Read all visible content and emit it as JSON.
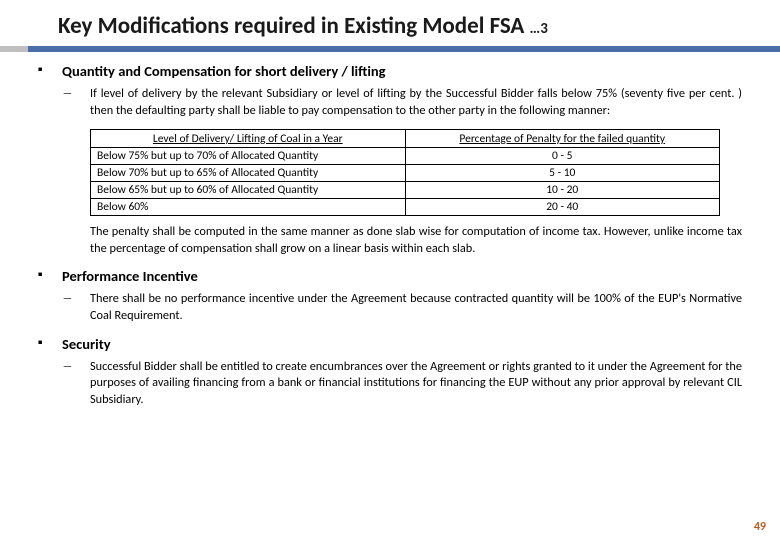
{
  "title_main": "Key Modifications required in Existing Model FSA ",
  "title_suffix": "…3",
  "accent_left_color": "#bfbfbf",
  "accent_right_color": "#4a6ea9",
  "page_number": "49",
  "page_number_color": "#b85c28",
  "sections": {
    "s1": {
      "heading": "Quantity and Compensation for short delivery / lifting",
      "sub1": "If level of delivery by the relevant Subsidiary or level of lifting by the Successful Bidder falls below 75% (seventy five per cent. ) then the defaulting party shall be liable to pay compensation to the other party in the following manner:"
    },
    "table": {
      "col1_header": "Level of Delivery/ Lifting of Coal in a Year",
      "col2_header": "Percentage of Penalty for the failed quantity",
      "rows": [
        {
          "c1": "Below 75% but up to 70% of Allocated Quantity",
          "c2": "0 - 5"
        },
        {
          "c1": "Below 70% but up to 65% of Allocated Quantity",
          "c2": "5 - 10"
        },
        {
          "c1": "Below 65% but up to 60% of Allocated Quantity",
          "c2": "10 - 20"
        },
        {
          "c1": "Below 60%",
          "c2": "20 - 40"
        }
      ]
    },
    "penalty_note": "The penalty shall be computed in the same manner as done slab wise for computation of income tax. However, unlike income tax the percentage of compensation shall grow on a linear basis within each slab.",
    "s2": {
      "heading": "Performance Incentive",
      "sub1": "There shall be no performance incentive under the Agreement because contracted quantity will be 100% of the EUP's Normative Coal Requirement."
    },
    "s3": {
      "heading": "Security",
      "sub1": "Successful Bidder shall be entitled to create encumbrances over the Agreement or rights granted to it under the Agreement for the purposes of availing financing from a bank or financial institutions for financing the EUP without any prior approval by relevant CIL Subsidiary."
    }
  }
}
